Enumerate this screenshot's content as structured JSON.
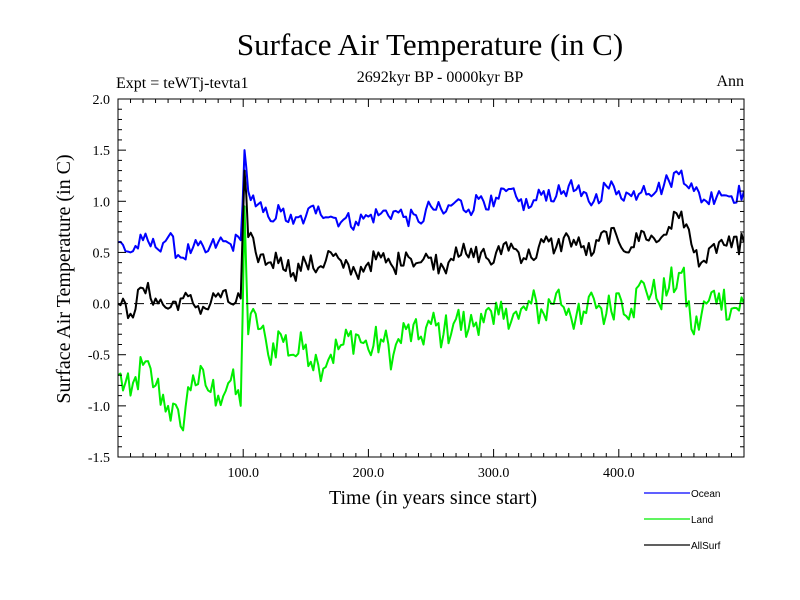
{
  "chart_data": {
    "type": "line",
    "title": "Surface Air Temperature (in C)",
    "subtitle": "2692kyr BP - 0000kyr BP",
    "experiment_label": "Expt = teWTj-tevta1",
    "period_label": "Ann",
    "xlabel": "Time (in years since start)",
    "ylabel": "Surface Air Temperature (in C)",
    "xlim": [
      0,
      500
    ],
    "ylim": [
      -1.5,
      2.0
    ],
    "xticks": [
      100,
      200,
      300,
      400
    ],
    "xtick_labels": [
      "100.0",
      "200.0",
      "300.0",
      "400.0"
    ],
    "yticks": [
      -1.5,
      -1.0,
      -0.5,
      0.0,
      0.5,
      1.0,
      1.5,
      2.0
    ],
    "ytick_labels": [
      "-1.5",
      "-1.0",
      "-0.5",
      "0.0",
      "0.5",
      "1.0",
      "1.5",
      "2.0"
    ],
    "reference_line": 0.0,
    "x": [
      0,
      10,
      20,
      30,
      40,
      50,
      60,
      70,
      80,
      90,
      98,
      101,
      104,
      110,
      120,
      130,
      140,
      150,
      160,
      170,
      180,
      190,
      200,
      210,
      220,
      230,
      240,
      250,
      260,
      270,
      280,
      290,
      300,
      310,
      320,
      330,
      340,
      350,
      360,
      370,
      380,
      390,
      400,
      410,
      420,
      430,
      440,
      450,
      460,
      470,
      480,
      490,
      500
    ],
    "series": [
      {
        "name": "Ocean",
        "color": "#0000ff",
        "values": [
          0.6,
          0.5,
          0.62,
          0.55,
          0.65,
          0.45,
          0.55,
          0.5,
          0.6,
          0.58,
          0.62,
          1.5,
          1.1,
          0.95,
          0.85,
          0.9,
          0.78,
          0.85,
          0.95,
          0.85,
          0.82,
          0.8,
          0.85,
          0.88,
          0.9,
          0.85,
          0.8,
          0.95,
          0.88,
          1.0,
          0.92,
          1.05,
          0.95,
          1.1,
          1.0,
          0.95,
          1.1,
          1.05,
          1.15,
          1.05,
          1.0,
          1.15,
          1.1,
          1.05,
          1.15,
          1.1,
          1.2,
          1.3,
          1.1,
          1.0,
          1.1,
          1.05,
          1.1
        ]
      },
      {
        "name": "Land",
        "color": "#00ee00",
        "values": [
          -0.7,
          -0.9,
          -0.6,
          -0.8,
          -1.0,
          -1.2,
          -0.7,
          -0.8,
          -0.9,
          -0.75,
          -1.0,
          0.95,
          -0.3,
          -0.1,
          -0.5,
          -0.3,
          -0.5,
          -0.4,
          -0.6,
          -0.5,
          -0.4,
          -0.3,
          -0.45,
          -0.35,
          -0.5,
          -0.25,
          -0.35,
          -0.2,
          -0.3,
          -0.15,
          -0.25,
          -0.1,
          -0.2,
          -0.05,
          -0.15,
          0.0,
          -0.1,
          0.1,
          -0.05,
          -0.2,
          0.05,
          -0.1,
          0.1,
          -0.05,
          0.2,
          0.05,
          0.15,
          0.3,
          -0.3,
          0.0,
          0.1,
          -0.05,
          0.0
        ]
      },
      {
        "name": "AllSurf",
        "color": "#000000",
        "values": [
          0.0,
          -0.1,
          0.15,
          0.05,
          -0.05,
          0.05,
          0.0,
          -0.05,
          0.1,
          0.0,
          0.05,
          1.3,
          0.65,
          0.5,
          0.4,
          0.45,
          0.3,
          0.4,
          0.35,
          0.5,
          0.35,
          0.3,
          0.4,
          0.45,
          0.35,
          0.5,
          0.4,
          0.45,
          0.35,
          0.55,
          0.45,
          0.5,
          0.4,
          0.6,
          0.5,
          0.45,
          0.6,
          0.55,
          0.65,
          0.55,
          0.5,
          0.7,
          0.6,
          0.55,
          0.7,
          0.6,
          0.75,
          0.9,
          0.5,
          0.4,
          0.6,
          0.55,
          0.6
        ]
      }
    ]
  }
}
